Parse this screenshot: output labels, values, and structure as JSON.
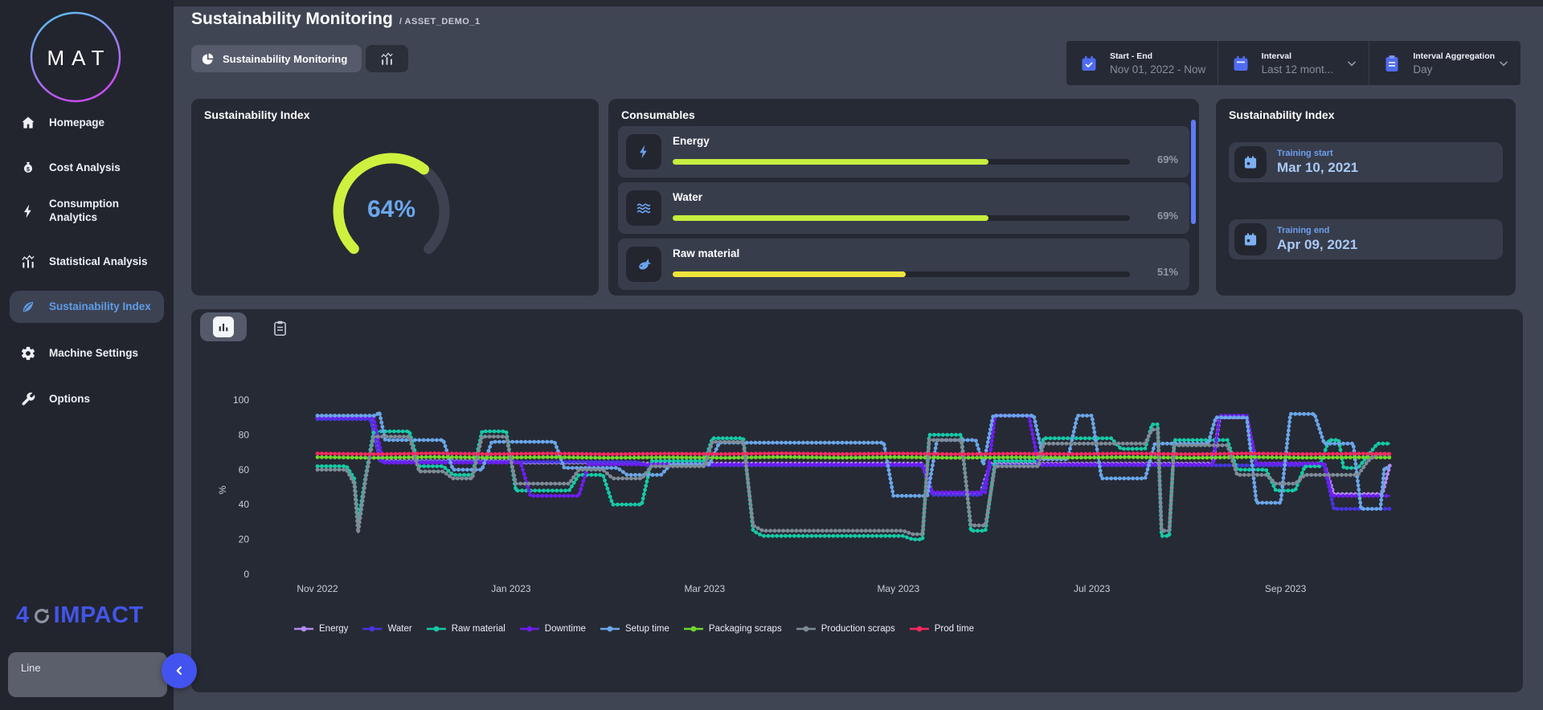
{
  "app": {
    "background": "#404554",
    "accent_blue": "#4f6cf0",
    "lime": "#cdf13f"
  },
  "sidebar": {
    "logo_text": "MAT",
    "items": [
      {
        "label": "Homepage",
        "icon": "home-icon",
        "active": false
      },
      {
        "label": "Cost Analysis",
        "icon": "money-bag-icon",
        "active": false
      },
      {
        "label": "Consumption Analytics",
        "icon": "bolt-icon",
        "active": false
      },
      {
        "label": "Statistical Analysis",
        "icon": "stats-icon",
        "active": false
      },
      {
        "label": "Sustainability Index",
        "icon": "leaf-icon",
        "active": true
      },
      {
        "label": "Machine Settings",
        "icon": "gear-icon",
        "active": false
      },
      {
        "label": "Options",
        "icon": "wrench-icon",
        "active": false
      }
    ],
    "footer_logo": {
      "prefix": "4",
      "zero_icon": "refresh-circle-icon",
      "suffix": "IMPACT"
    },
    "line_panel_label": "Line"
  },
  "header": {
    "title": "Sustainability Monitoring",
    "breadcrumb": "/ ASSET_DEMO_1"
  },
  "tabs": {
    "monitoring": {
      "label": "Sustainability Monitoring",
      "icon": "pie-chart-icon"
    },
    "statistics_icon": "line-chart-icon"
  },
  "filters": {
    "start_end": {
      "label": "Start - End",
      "value": "Nov 01, 2022 - Now",
      "icon": "calendar-check-icon"
    },
    "interval": {
      "label": "Interval",
      "value": "Last 12 mont...",
      "icon": "calendar-icon",
      "has_dropdown": true
    },
    "aggregation": {
      "label": "Interval Aggregation",
      "value": "Day",
      "icon": "clipboard-icon",
      "has_dropdown": true
    }
  },
  "gauge_card": {
    "title": "Sustainability Index",
    "value": 64,
    "display": "64%",
    "arc_color": "#cdf13f",
    "track_color": "#3d4251",
    "text_color": "#6ba7ec"
  },
  "consumables_card": {
    "title": "Consumables",
    "items": [
      {
        "label": "Energy",
        "icon": "bolt-icon",
        "pct": 69,
        "display": "69%",
        "color": "#c6ee3f"
      },
      {
        "label": "Water",
        "icon": "waves-icon",
        "pct": 69,
        "display": "69%",
        "color": "#c6ee3f"
      },
      {
        "label": "Raw material",
        "icon": "fish-icon",
        "pct": 51,
        "display": "51%",
        "color": "#f0e43c"
      }
    ]
  },
  "training_card": {
    "title": "Sustainability Index",
    "rows": [
      {
        "label": "Training start",
        "value": "Mar 10, 2021",
        "icon": "calendar-icon"
      },
      {
        "label": "Training end",
        "value": "Apr 09, 2021",
        "icon": "calendar-icon"
      }
    ]
  },
  "chart_card": {
    "toolbar": {
      "chart_view_icon": "bar-chart-icon",
      "table_view_icon": "clipboard-icon"
    }
  },
  "chart_data": {
    "type": "line",
    "title": "",
    "ylabel": "%",
    "ylim": [
      0,
      100
    ],
    "yticks": [
      100,
      80,
      60,
      40,
      20,
      0
    ],
    "xticks": [
      {
        "label": "Nov 2022",
        "t": 0
      },
      {
        "label": "Jan 2023",
        "t": 2
      },
      {
        "label": "Mar 2023",
        "t": 4
      },
      {
        "label": "May 2023",
        "t": 6
      },
      {
        "label": "Jul 2023",
        "t": 8
      },
      {
        "label": "Sep 2023",
        "t": 10
      }
    ],
    "x_unit": "months_since_nov_2022",
    "legend_position": "bottom",
    "grid": false,
    "series": [
      {
        "name": "Energy",
        "color": "#b48af5",
        "points": [
          [
            0,
            89.5
          ],
          [
            0.55,
            89.5
          ],
          [
            0.65,
            65
          ],
          [
            2.0,
            65
          ],
          [
            2.1,
            64
          ],
          [
            3.3,
            64
          ],
          [
            3.4,
            63.5
          ],
          [
            6.25,
            63.5
          ],
          [
            6.35,
            46.5
          ],
          [
            6.85,
            46.5
          ],
          [
            6.95,
            63.5
          ],
          [
            9.25,
            63.5
          ],
          [
            9.32,
            90
          ],
          [
            9.6,
            90
          ],
          [
            9.7,
            63.5
          ],
          [
            10.4,
            63.5
          ],
          [
            10.5,
            46
          ],
          [
            11.0,
            46
          ],
          [
            11.08,
            63
          ]
        ]
      },
      {
        "name": "Water",
        "color": "#4636e0",
        "points": [
          [
            0,
            89
          ],
          [
            0.55,
            89
          ],
          [
            0.65,
            64.5
          ],
          [
            3.3,
            64.5
          ],
          [
            3.4,
            62.5
          ],
          [
            6.25,
            62.5
          ],
          [
            6.35,
            45.5
          ],
          [
            6.85,
            45.5
          ],
          [
            6.95,
            62.5
          ],
          [
            10.4,
            62.5
          ],
          [
            10.5,
            37.5
          ],
          [
            11.08,
            37.5
          ]
        ]
      },
      {
        "name": "Raw material",
        "color": "#16c9a5",
        "points": [
          [
            0,
            62
          ],
          [
            0.3,
            62
          ],
          [
            0.38,
            55
          ],
          [
            0.42,
            30
          ],
          [
            0.5,
            57
          ],
          [
            0.58,
            82
          ],
          [
            0.95,
            82
          ],
          [
            1.05,
            62
          ],
          [
            1.3,
            62
          ],
          [
            1.4,
            57
          ],
          [
            1.6,
            57
          ],
          [
            1.7,
            82
          ],
          [
            1.95,
            82
          ],
          [
            2.05,
            48
          ],
          [
            2.6,
            48
          ],
          [
            2.7,
            57
          ],
          [
            2.95,
            57
          ],
          [
            3.05,
            40
          ],
          [
            3.35,
            40
          ],
          [
            3.45,
            65
          ],
          [
            4.0,
            65
          ],
          [
            4.08,
            78
          ],
          [
            4.4,
            78
          ],
          [
            4.5,
            25
          ],
          [
            4.6,
            22
          ],
          [
            6.05,
            22
          ],
          [
            6.15,
            20
          ],
          [
            6.25,
            20
          ],
          [
            6.32,
            80
          ],
          [
            6.65,
            80
          ],
          [
            6.75,
            25
          ],
          [
            6.9,
            25
          ],
          [
            7.0,
            65
          ],
          [
            7.45,
            65
          ],
          [
            7.5,
            78
          ],
          [
            8.2,
            78
          ],
          [
            8.3,
            72
          ],
          [
            8.55,
            72
          ],
          [
            8.62,
            86
          ],
          [
            8.68,
            86
          ],
          [
            8.72,
            22
          ],
          [
            8.8,
            22
          ],
          [
            8.85,
            77
          ],
          [
            9.4,
            77
          ],
          [
            9.5,
            60
          ],
          [
            9.8,
            60
          ],
          [
            9.9,
            48
          ],
          [
            10.1,
            48
          ],
          [
            10.2,
            62
          ],
          [
            10.35,
            62
          ],
          [
            10.45,
            77
          ],
          [
            10.55,
            77
          ],
          [
            10.6,
            61
          ],
          [
            10.75,
            61
          ],
          [
            10.85,
            68
          ],
          [
            10.95,
            75
          ],
          [
            11.08,
            75
          ]
        ]
      },
      {
        "name": "Downtime",
        "color": "#6d1ef0",
        "points": [
          [
            0,
            90
          ],
          [
            0.58,
            90
          ],
          [
            0.68,
            64
          ],
          [
            2.1,
            64
          ],
          [
            2.2,
            45
          ],
          [
            2.7,
            45
          ],
          [
            2.8,
            63
          ],
          [
            6.25,
            63
          ],
          [
            6.35,
            47
          ],
          [
            6.9,
            47
          ],
          [
            7.0,
            91
          ],
          [
            7.35,
            91
          ],
          [
            7.45,
            63
          ],
          [
            9.25,
            63
          ],
          [
            9.32,
            91
          ],
          [
            9.6,
            91
          ],
          [
            9.7,
            63.5
          ],
          [
            10.4,
            63.5
          ],
          [
            10.48,
            45
          ],
          [
            11.08,
            45
          ]
        ]
      },
      {
        "name": "Setup time",
        "color": "#6aa6e8",
        "points": [
          [
            0,
            91
          ],
          [
            0.6,
            91
          ],
          [
            0.64,
            93
          ],
          [
            0.7,
            77
          ],
          [
            1.3,
            77
          ],
          [
            1.4,
            60
          ],
          [
            1.7,
            60
          ],
          [
            1.8,
            76
          ],
          [
            2.45,
            76
          ],
          [
            2.55,
            61
          ],
          [
            3.1,
            61
          ],
          [
            3.2,
            57
          ],
          [
            3.55,
            57
          ],
          [
            3.65,
            63
          ],
          [
            4.05,
            63
          ],
          [
            4.15,
            75.5
          ],
          [
            5.85,
            75.5
          ],
          [
            5.95,
            45
          ],
          [
            6.3,
            45
          ],
          [
            6.4,
            77
          ],
          [
            6.8,
            77
          ],
          [
            6.88,
            63
          ],
          [
            6.98,
            91
          ],
          [
            7.4,
            91
          ],
          [
            7.5,
            66
          ],
          [
            7.75,
            66
          ],
          [
            7.85,
            91
          ],
          [
            8.0,
            91
          ],
          [
            8.1,
            55
          ],
          [
            8.55,
            55
          ],
          [
            8.65,
            75
          ],
          [
            9.2,
            75
          ],
          [
            9.28,
            90
          ],
          [
            9.6,
            90
          ],
          [
            9.7,
            41
          ],
          [
            9.95,
            41
          ],
          [
            10.05,
            92
          ],
          [
            10.3,
            92
          ],
          [
            10.4,
            75
          ],
          [
            10.7,
            75
          ],
          [
            10.78,
            37.5
          ],
          [
            10.98,
            37.5
          ],
          [
            11.02,
            61
          ],
          [
            11.08,
            61
          ]
        ]
      },
      {
        "name": "Packaging scraps",
        "color": "#6fd62e",
        "points": [
          [
            0,
            67.2
          ],
          [
            0.6,
            66.8
          ],
          [
            1.2,
            67.3
          ],
          [
            1.8,
            66.9
          ],
          [
            2.4,
            67.2
          ],
          [
            3.0,
            66.8
          ],
          [
            3.6,
            67.1
          ],
          [
            4.2,
            66.8
          ],
          [
            4.8,
            67.3
          ],
          [
            5.4,
            66.9
          ],
          [
            6.0,
            67.2
          ],
          [
            6.6,
            66.8
          ],
          [
            7.2,
            67.1
          ],
          [
            7.8,
            66.9
          ],
          [
            8.4,
            67.2
          ],
          [
            9.0,
            66.8
          ],
          [
            9.6,
            67.2
          ],
          [
            10.2,
            66.9
          ],
          [
            10.8,
            67.1
          ],
          [
            11.08,
            67
          ]
        ]
      },
      {
        "name": "Production scraps",
        "color": "#7e8c98",
        "points": [
          [
            0,
            60
          ],
          [
            0.3,
            60
          ],
          [
            0.38,
            52
          ],
          [
            0.42,
            24
          ],
          [
            0.5,
            55
          ],
          [
            0.58,
            79
          ],
          [
            0.95,
            79
          ],
          [
            1.05,
            59
          ],
          [
            1.3,
            59
          ],
          [
            1.4,
            55
          ],
          [
            1.6,
            55
          ],
          [
            1.7,
            79
          ],
          [
            1.95,
            79
          ],
          [
            2.05,
            52
          ],
          [
            2.6,
            52
          ],
          [
            2.7,
            60
          ],
          [
            2.95,
            60
          ],
          [
            3.05,
            55
          ],
          [
            3.35,
            55
          ],
          [
            3.45,
            62
          ],
          [
            4.0,
            62
          ],
          [
            4.08,
            76
          ],
          [
            4.4,
            76
          ],
          [
            4.5,
            28
          ],
          [
            4.6,
            25
          ],
          [
            6.05,
            25
          ],
          [
            6.15,
            23
          ],
          [
            6.25,
            23
          ],
          [
            6.32,
            77
          ],
          [
            6.65,
            77
          ],
          [
            6.75,
            28
          ],
          [
            6.9,
            28
          ],
          [
            7.0,
            62
          ],
          [
            7.45,
            62
          ],
          [
            7.5,
            75
          ],
          [
            8.55,
            75
          ],
          [
            8.62,
            83
          ],
          [
            8.68,
            83
          ],
          [
            8.72,
            25
          ],
          [
            8.8,
            25
          ],
          [
            8.85,
            74
          ],
          [
            9.4,
            74
          ],
          [
            9.5,
            57
          ],
          [
            9.8,
            57
          ],
          [
            9.9,
            52
          ],
          [
            10.1,
            52
          ],
          [
            10.2,
            57
          ],
          [
            10.75,
            57
          ],
          [
            10.85,
            65
          ],
          [
            10.95,
            69
          ],
          [
            11.08,
            69
          ]
        ]
      },
      {
        "name": "Prod time",
        "color": "#f5295f",
        "points": [
          [
            0,
            69.3
          ],
          [
            0.6,
            68.9
          ],
          [
            1.2,
            69.4
          ],
          [
            1.8,
            69.0
          ],
          [
            2.4,
            69.3
          ],
          [
            3.0,
            68.9
          ],
          [
            3.6,
            69.2
          ],
          [
            4.2,
            69.0
          ],
          [
            4.8,
            69.4
          ],
          [
            5.4,
            69.0
          ],
          [
            6.0,
            69.3
          ],
          [
            6.6,
            68.9
          ],
          [
            7.2,
            69.2
          ],
          [
            7.8,
            69.0
          ],
          [
            8.4,
            69.3
          ],
          [
            9.0,
            68.9
          ],
          [
            9.6,
            69.3
          ],
          [
            10.2,
            69.0
          ],
          [
            10.8,
            69.2
          ],
          [
            11.08,
            69.1
          ]
        ]
      }
    ]
  }
}
